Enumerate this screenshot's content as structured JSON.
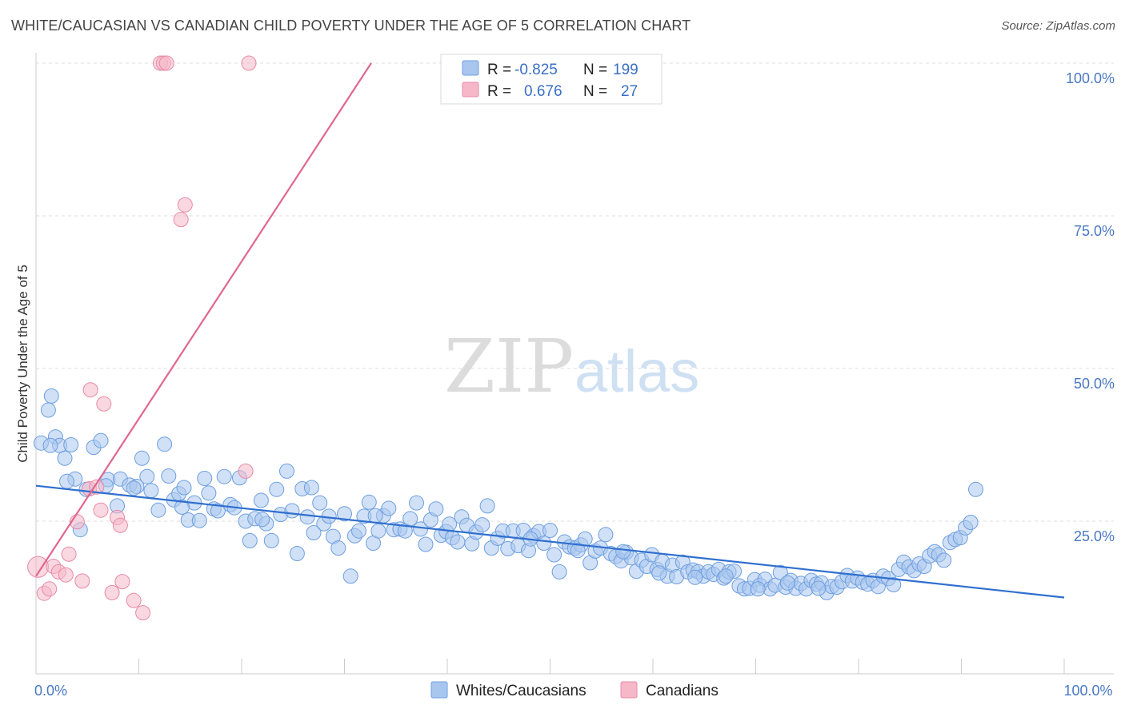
{
  "header": {
    "title": "WHITE/CAUCASIAN VS CANADIAN CHILD POVERTY UNDER THE AGE OF 5 CORRELATION CHART",
    "source": "Source: ZipAtlas.com"
  },
  "watermark": {
    "zip": "ZIP",
    "atlas": "atlas"
  },
  "legend": {
    "rows": [
      {
        "r_label": "R =",
        "r_value": "-0.825",
        "n_label": "N =",
        "n_value": "199",
        "color": "#a9c7ee"
      },
      {
        "r_label": "R =",
        "r_value": "0.676",
        "n_label": "N =",
        "n_value": "27",
        "color": "#f6b8c9"
      }
    ]
  },
  "bottom_legend": {
    "items": [
      {
        "label": "Whites/Caucasians",
        "color": "#a9c7ee"
      },
      {
        "label": "Canadians",
        "color": "#f6b8c9"
      }
    ]
  },
  "chart_data": {
    "type": "scatter",
    "ylabel": "Child Poverty Under the Age of 5",
    "xlabel": "",
    "xlim": [
      0,
      100
    ],
    "ylim": [
      0,
      100
    ],
    "x_tick_labels": [
      {
        "value": 0,
        "label": "0.0%"
      },
      {
        "value": 100,
        "label": "100.0%"
      }
    ],
    "y_tick_labels": [
      {
        "value": 25,
        "label": "25.0%"
      },
      {
        "value": 50,
        "label": "50.0%"
      },
      {
        "value": 75,
        "label": "75.0%"
      },
      {
        "value": 100,
        "label": "100.0%"
      }
    ],
    "grid": true,
    "legend_position": "top-center",
    "series": [
      {
        "name": "Whites/Caucasians",
        "color": "#a9c7ee",
        "stroke": "#6e9fe0",
        "trend": {
          "x": [
            0,
            100
          ],
          "y": [
            30.8,
            12.5
          ],
          "color": "#2f6fcf"
        },
        "points": [
          [
            0.5,
            37.8
          ],
          [
            1.2,
            43.2
          ],
          [
            1.5,
            45.5
          ],
          [
            1.9,
            38.8
          ],
          [
            2.3,
            37.4
          ],
          [
            2.8,
            35.3
          ],
          [
            3.4,
            37.5
          ],
          [
            3.8,
            31.9
          ],
          [
            4.3,
            23.6
          ],
          [
            4.9,
            30.2
          ],
          [
            5.6,
            37.1
          ],
          [
            6.3,
            38.2
          ],
          [
            7.0,
            31.8
          ],
          [
            7.9,
            27.5
          ],
          [
            8.2,
            31.9
          ],
          [
            9.1,
            30.9
          ],
          [
            9.8,
            30.7
          ],
          [
            10.3,
            35.3
          ],
          [
            10.8,
            32.3
          ],
          [
            11.2,
            30.0
          ],
          [
            11.9,
            26.8
          ],
          [
            12.5,
            37.6
          ],
          [
            12.9,
            32.4
          ],
          [
            13.4,
            28.5
          ],
          [
            13.9,
            29.5
          ],
          [
            14.4,
            30.5
          ],
          [
            14.8,
            25.2
          ],
          [
            15.4,
            28.0
          ],
          [
            15.9,
            25.1
          ],
          [
            16.4,
            32.0
          ],
          [
            16.8,
            29.6
          ],
          [
            17.3,
            27.0
          ],
          [
            17.7,
            26.7
          ],
          [
            18.3,
            32.3
          ],
          [
            18.9,
            27.7
          ],
          [
            19.3,
            27.2
          ],
          [
            19.8,
            32.1
          ],
          [
            20.4,
            25.0
          ],
          [
            20.8,
            21.8
          ],
          [
            21.3,
            25.4
          ],
          [
            21.9,
            28.4
          ],
          [
            22.4,
            24.6
          ],
          [
            22.9,
            21.8
          ],
          [
            23.4,
            30.2
          ],
          [
            23.8,
            26.1
          ],
          [
            24.4,
            33.2
          ],
          [
            24.9,
            26.7
          ],
          [
            25.4,
            19.7
          ],
          [
            25.9,
            30.3
          ],
          [
            26.4,
            25.7
          ],
          [
            27.0,
            23.1
          ],
          [
            27.6,
            28.0
          ],
          [
            28.0,
            24.6
          ],
          [
            28.5,
            25.8
          ],
          [
            28.9,
            22.5
          ],
          [
            29.4,
            20.6
          ],
          [
            30.0,
            26.2
          ],
          [
            30.6,
            16.0
          ],
          [
            31.0,
            22.6
          ],
          [
            31.4,
            23.4
          ],
          [
            31.9,
            25.8
          ],
          [
            32.4,
            28.1
          ],
          [
            32.8,
            21.4
          ],
          [
            33.3,
            23.4
          ],
          [
            33.8,
            25.9
          ],
          [
            34.3,
            27.1
          ],
          [
            34.8,
            23.6
          ],
          [
            35.4,
            23.7
          ],
          [
            35.9,
            23.4
          ],
          [
            36.4,
            25.4
          ],
          [
            37.0,
            28.0
          ],
          [
            37.4,
            23.7
          ],
          [
            37.9,
            21.2
          ],
          [
            38.4,
            25.2
          ],
          [
            38.9,
            27.0
          ],
          [
            39.4,
            22.7
          ],
          [
            39.9,
            23.3
          ],
          [
            40.5,
            22.3
          ],
          [
            41.0,
            21.6
          ],
          [
            41.4,
            25.7
          ],
          [
            41.9,
            24.3
          ],
          [
            42.4,
            21.3
          ],
          [
            42.8,
            23.2
          ],
          [
            43.4,
            24.4
          ],
          [
            43.9,
            27.5
          ],
          [
            44.3,
            20.6
          ],
          [
            44.9,
            22.2
          ],
          [
            45.4,
            23.4
          ],
          [
            45.9,
            20.5
          ],
          [
            46.4,
            23.4
          ],
          [
            46.9,
            21.0
          ],
          [
            47.4,
            23.5
          ],
          [
            47.9,
            20.2
          ],
          [
            48.4,
            22.6
          ],
          [
            48.9,
            23.3
          ],
          [
            49.4,
            21.4
          ],
          [
            50.0,
            23.5
          ],
          [
            50.4,
            19.5
          ],
          [
            50.9,
            16.7
          ],
          [
            51.4,
            21.6
          ],
          [
            51.9,
            20.8
          ],
          [
            52.4,
            20.6
          ],
          [
            53.0,
            21.1
          ],
          [
            53.4,
            22.1
          ],
          [
            53.9,
            18.2
          ],
          [
            54.4,
            20.1
          ],
          [
            54.9,
            20.6
          ],
          [
            55.4,
            22.8
          ],
          [
            55.9,
            19.7
          ],
          [
            56.4,
            19.2
          ],
          [
            56.9,
            18.5
          ],
          [
            57.4,
            19.9
          ],
          [
            57.9,
            19.0
          ],
          [
            58.4,
            16.8
          ],
          [
            58.9,
            18.6
          ],
          [
            59.4,
            17.6
          ],
          [
            59.9,
            19.5
          ],
          [
            60.4,
            17.1
          ],
          [
            60.9,
            18.4
          ],
          [
            61.4,
            16.0
          ],
          [
            61.9,
            17.8
          ],
          [
            62.3,
            15.9
          ],
          [
            62.9,
            18.3
          ],
          [
            63.4,
            16.7
          ],
          [
            63.9,
            17.0
          ],
          [
            64.4,
            16.7
          ],
          [
            64.9,
            16.0
          ],
          [
            65.4,
            16.7
          ],
          [
            65.9,
            16.3
          ],
          [
            66.4,
            17.1
          ],
          [
            66.9,
            15.7
          ],
          [
            67.4,
            16.7
          ],
          [
            67.9,
            16.8
          ],
          [
            68.4,
            14.4
          ],
          [
            68.9,
            13.9
          ],
          [
            69.4,
            14.0
          ],
          [
            69.9,
            15.4
          ],
          [
            70.4,
            14.5
          ],
          [
            70.9,
            15.5
          ],
          [
            71.4,
            13.9
          ],
          [
            71.9,
            14.5
          ],
          [
            72.4,
            16.6
          ],
          [
            72.9,
            14.2
          ],
          [
            73.4,
            15.3
          ],
          [
            73.9,
            14.0
          ],
          [
            74.4,
            14.8
          ],
          [
            74.9,
            13.9
          ],
          [
            75.4,
            15.3
          ],
          [
            75.9,
            14.7
          ],
          [
            76.4,
            14.9
          ],
          [
            76.9,
            13.3
          ],
          [
            77.4,
            14.3
          ],
          [
            77.9,
            14.2
          ],
          [
            78.4,
            15.1
          ],
          [
            78.9,
            16.1
          ],
          [
            79.4,
            15.2
          ],
          [
            79.9,
            15.7
          ],
          [
            80.4,
            15.0
          ],
          [
            80.9,
            14.7
          ],
          [
            81.4,
            15.3
          ],
          [
            81.9,
            14.3
          ],
          [
            82.4,
            16.0
          ],
          [
            82.9,
            15.6
          ],
          [
            83.4,
            14.6
          ],
          [
            83.9,
            17.1
          ],
          [
            84.4,
            18.3
          ],
          [
            84.9,
            17.5
          ],
          [
            85.4,
            16.9
          ],
          [
            85.9,
            18.0
          ],
          [
            86.4,
            17.6
          ],
          [
            86.9,
            19.3
          ],
          [
            87.4,
            20.0
          ],
          [
            87.8,
            19.5
          ],
          [
            88.3,
            18.6
          ],
          [
            88.9,
            21.5
          ],
          [
            89.4,
            22.0
          ],
          [
            89.9,
            22.3
          ],
          [
            90.4,
            23.9
          ],
          [
            90.9,
            24.8
          ],
          [
            91.4,
            30.2
          ],
          [
            1.4,
            37.4
          ],
          [
            3.0,
            31.5
          ],
          [
            6.8,
            30.8
          ],
          [
            9.5,
            30.4
          ],
          [
            14.2,
            27.3
          ],
          [
            22.0,
            25.3
          ],
          [
            26.8,
            30.5
          ],
          [
            33.0,
            25.9
          ],
          [
            40.2,
            24.5
          ],
          [
            48.1,
            22.1
          ],
          [
            52.7,
            20.2
          ],
          [
            57.1,
            20.0
          ],
          [
            60.6,
            16.5
          ],
          [
            64.1,
            15.8
          ],
          [
            67.1,
            16.0
          ],
          [
            70.2,
            13.9
          ],
          [
            73.1,
            14.9
          ],
          [
            76.1,
            14.0
          ]
        ]
      },
      {
        "name": "Canadians",
        "color": "#f6b8c9",
        "stroke": "#e88aa6",
        "trend": {
          "x": [
            0,
            32.6
          ],
          "y": [
            16.0,
            100
          ],
          "color": "#e06690"
        },
        "points": [
          [
            0.2,
            17.5
          ],
          [
            0.8,
            13.2
          ],
          [
            1.3,
            13.9
          ],
          [
            1.7,
            17.6
          ],
          [
            2.2,
            16.7
          ],
          [
            2.9,
            16.2
          ],
          [
            3.2,
            19.6
          ],
          [
            4.0,
            24.9
          ],
          [
            4.5,
            15.2
          ],
          [
            5.2,
            30.3
          ],
          [
            5.3,
            46.5
          ],
          [
            5.9,
            30.6
          ],
          [
            6.3,
            26.8
          ],
          [
            6.6,
            44.2
          ],
          [
            7.4,
            13.3
          ],
          [
            7.9,
            25.6
          ],
          [
            8.2,
            24.3
          ],
          [
            8.4,
            15.1
          ],
          [
            9.5,
            12.0
          ],
          [
            10.4,
            10.0
          ],
          [
            12.1,
            100
          ],
          [
            12.4,
            100
          ],
          [
            12.7,
            100
          ],
          [
            14.1,
            74.4
          ],
          [
            14.5,
            76.8
          ],
          [
            20.4,
            33.2
          ],
          [
            20.7,
            100
          ]
        ]
      }
    ]
  }
}
